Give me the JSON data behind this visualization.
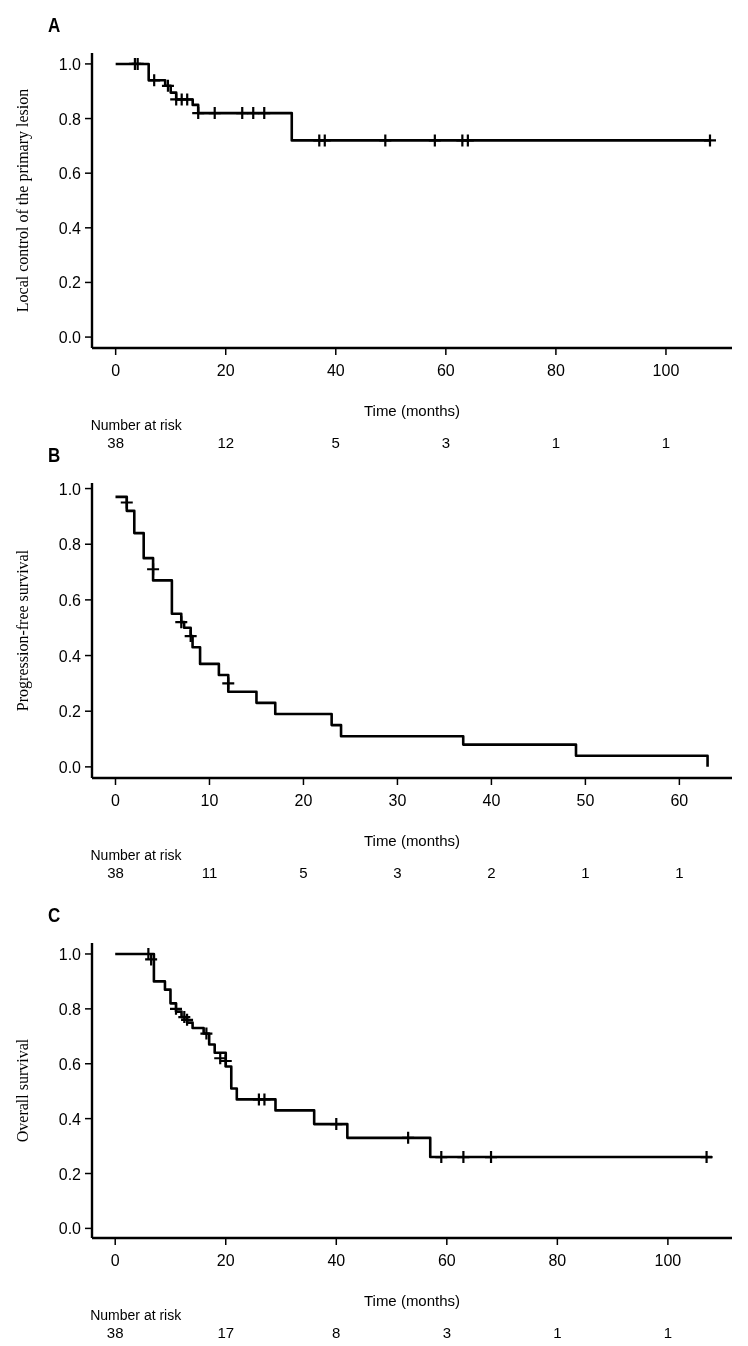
{
  "chart_data": [
    {
      "type": "step",
      "title": "A",
      "xlabel": "Time (months)",
      "ylabel": "Local control of the primary lesion",
      "xlim": [
        -4.3,
        112
      ],
      "ylim": [
        -0.04,
        1.04
      ],
      "xticks": [
        0,
        20,
        40,
        60,
        80,
        100
      ],
      "yticks": [
        {
          "value": 0,
          "label": "0.0"
        },
        {
          "value": 0.2,
          "label": "0.2"
        },
        {
          "value": 0.4,
          "label": "0.4"
        },
        {
          "value": 0.6,
          "label": "0.6"
        },
        {
          "value": 0.8,
          "label": "0.8"
        },
        {
          "value": 1,
          "label": "1.0"
        }
      ],
      "annotations": [
        "Number at risk",
        "38",
        "12",
        "5",
        "3",
        "1",
        "1"
      ],
      "series": [
        {
          "color": "#000000",
          "x": [
            0,
            6,
            9,
            10,
            11,
            14,
            15,
            32,
            108
          ],
          "values": [
            1,
            0.94,
            0.92,
            0.895,
            0.87,
            0.85,
            0.82,
            0.72,
            0.72
          ]
        },
        {
          "type": "scatter",
          "color": "#000000",
          "marker": "cross",
          "x": [
            3.5,
            4,
            7,
            9.5,
            11,
            12,
            13,
            15,
            18,
            23,
            25,
            27,
            37,
            38,
            49,
            58,
            63,
            64,
            108
          ],
          "values": [
            1,
            1,
            0.94,
            0.92,
            0.87,
            0.87,
            0.87,
            0.82,
            0.82,
            0.82,
            0.82,
            0.82,
            0.72,
            0.72,
            0.72,
            0.72,
            0.72,
            0.72,
            0.72
          ]
        }
      ]
    },
    {
      "type": "step",
      "title": "B",
      "xlabel": "Time (months)",
      "ylabel": "Progression-free survival",
      "xlim": [
        -2.5,
        65.6
      ],
      "ylim": [
        -0.04,
        1.02
      ],
      "xticks": [
        0,
        10,
        20,
        30,
        40,
        50,
        60
      ],
      "yticks": [
        {
          "value": 0,
          "label": "0.0"
        },
        {
          "value": 0.2,
          "label": "0.2"
        },
        {
          "value": 0.4,
          "label": "0.4"
        },
        {
          "value": 0.6,
          "label": "0.6"
        },
        {
          "value": 0.8,
          "label": "0.8"
        },
        {
          "value": 1,
          "label": "1.0"
        }
      ],
      "annotations": [
        "Number at risk",
        "38",
        "11",
        "5",
        "3",
        "2",
        "1",
        "1"
      ],
      "series": [
        {
          "color": "#000000",
          "x": [
            0,
            1.2,
            2,
            3,
            4,
            6,
            7,
            7.3,
            8,
            8.2,
            9,
            11,
            12,
            15,
            17,
            23,
            24,
            37,
            49,
            63
          ],
          "values": [
            0.97,
            0.92,
            0.84,
            0.75,
            0.67,
            0.55,
            0.52,
            0.5,
            0.47,
            0.43,
            0.37,
            0.33,
            0.27,
            0.23,
            0.19,
            0.15,
            0.11,
            0.08,
            0.04,
            0
          ]
        },
        {
          "type": "scatter",
          "color": "#000000",
          "marker": "cross",
          "x": [
            1.2,
            4,
            7,
            8,
            12
          ],
          "values": [
            0.95,
            0.71,
            0.52,
            0.47,
            0.3
          ]
        }
      ]
    },
    {
      "type": "step",
      "title": "C",
      "xlabel": "Time (months)",
      "ylabel": "Overall survival",
      "xlim": [
        -4.2,
        111.6
      ],
      "ylim": [
        -0.035,
        1.04
      ],
      "xticks": [
        0,
        20,
        40,
        60,
        80,
        100
      ],
      "yticks": [
        {
          "value": 0,
          "label": "0.0"
        },
        {
          "value": 0.2,
          "label": "0.2"
        },
        {
          "value": 0.4,
          "label": "0.4"
        },
        {
          "value": 0.6,
          "label": "0.6"
        },
        {
          "value": 0.8,
          "label": "0.8"
        },
        {
          "value": 1,
          "label": "1.0"
        }
      ],
      "annotations": [
        "Number at risk",
        "38",
        "17",
        "8",
        "3",
        "1",
        "1"
      ],
      "series": [
        {
          "color": "#000000",
          "x": [
            0,
            7,
            9,
            10,
            11,
            12,
            13,
            14,
            16,
            17,
            18,
            20,
            21,
            22,
            29,
            36,
            42,
            57,
            108
          ],
          "values": [
            1,
            0.9,
            0.87,
            0.82,
            0.79,
            0.77,
            0.75,
            0.73,
            0.71,
            0.67,
            0.64,
            0.59,
            0.51,
            0.47,
            0.43,
            0.38,
            0.33,
            0.26,
            0.26
          ]
        },
        {
          "type": "scatter",
          "color": "#000000",
          "marker": "cross",
          "x": [
            6,
            6.5,
            11,
            12.5,
            13,
            16.5,
            19,
            20,
            26,
            27,
            40,
            53,
            59,
            63,
            68,
            107
          ],
          "values": [
            1,
            0.98,
            0.8,
            0.77,
            0.76,
            0.71,
            0.62,
            0.61,
            0.47,
            0.47,
            0.38,
            0.33,
            0.26,
            0.26,
            0.26,
            0.26
          ]
        }
      ]
    }
  ]
}
